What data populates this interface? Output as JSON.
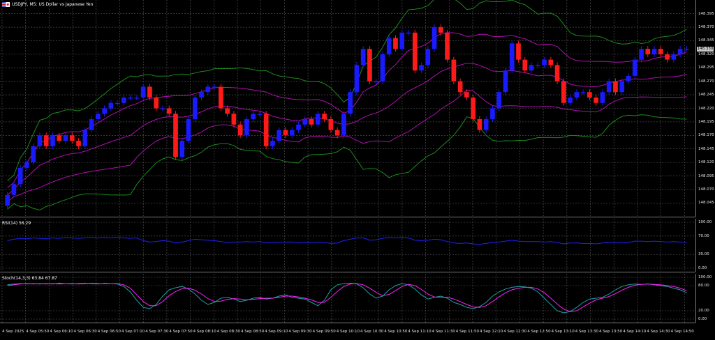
{
  "window": {
    "title": "USDJPY, M5:  US Dollar vs Japanese Yen",
    "flag_icon": "us-japan-flag-icon"
  },
  "indicators": {
    "rsi_label": "RSI(14) 56.29",
    "stoch_label": "Stoch(14,3,3) 63.84 67.87"
  },
  "price_axis": {
    "ticks": [
      "148.395",
      "148.370",
      "148.345",
      "148.320",
      "148.295",
      "148.270",
      "148.245",
      "148.220",
      "148.195",
      "148.170",
      "148.145",
      "148.120",
      "148.095",
      "148.070",
      "148.045"
    ],
    "current_price": "148.330"
  },
  "rsi_axis": {
    "ticks": [
      "100.00",
      "70.00",
      "30.00",
      "0.00"
    ]
  },
  "stoch_axis": {
    "ticks": [
      "100.00",
      "80.00",
      "20.00",
      "0.00"
    ]
  },
  "time_axis": {
    "labels": [
      "4 Sep 2025",
      "4 Sep 05:50",
      "4 Sep 06:10",
      "4 Sep 06:30",
      "4 Sep 06:50",
      "4 Sep 07:10",
      "4 Sep 07:30",
      "4 Sep 07:50",
      "4 Sep 08:10",
      "4 Sep 08:30",
      "4 Sep 08:50",
      "4 Sep 09:10",
      "4 Sep 09:30",
      "4 Sep 09:50",
      "4 Sep 10:10",
      "4 Sep 10:30",
      "4 Sep 10:50",
      "4 Sep 11:10",
      "4 Sep 11:30",
      "4 Sep 11:50",
      "4 Sep 12:10",
      "4 Sep 12:30",
      "4 Sep 12:50",
      "4 Sep 13:10",
      "4 Sep 13:30",
      "4 Sep 13:50",
      "4 Sep 14:10",
      "4 Sep 14:30",
      "4 Sep 14:50"
    ]
  },
  "colors": {
    "background": "#000000",
    "grid": "#5a5a5a",
    "bull_candle": "#1a1aff",
    "bear_candle": "#ff1a1a",
    "bb_outer": "#1d8a1d",
    "bb_inner": "#b010b0",
    "rsi_line": "#2020ff",
    "stoch_main": "#20a0a0",
    "stoch_signal": "#ff20ff"
  },
  "chart_data": [
    {
      "type": "candlestick",
      "title": "USDJPY, M5:  US Dollar vs Japanese Yen",
      "ylim": [
        148.03,
        148.41
      ],
      "close": [
        148.06,
        148.08,
        148.11,
        148.12,
        148.15,
        148.17,
        148.15,
        148.17,
        148.16,
        148.17,
        148.16,
        148.15,
        148.18,
        148.2,
        148.21,
        148.22,
        148.23,
        148.23,
        148.24,
        148.24,
        148.24,
        148.26,
        148.24,
        148.22,
        148.22,
        148.21,
        148.13,
        148.16,
        148.2,
        148.24,
        148.25,
        148.26,
        148.26,
        148.22,
        148.21,
        148.19,
        148.17,
        148.2,
        148.21,
        148.21,
        148.15,
        148.16,
        148.18,
        148.17,
        148.18,
        148.19,
        148.2,
        148.19,
        148.21,
        148.2,
        148.18,
        148.17,
        148.21,
        148.25,
        148.3,
        148.33,
        148.27,
        148.27,
        148.32,
        148.35,
        148.33,
        148.36,
        148.36,
        148.29,
        148.3,
        148.33,
        148.37,
        148.36,
        148.31,
        148.27,
        148.25,
        148.24,
        148.2,
        148.18,
        148.2,
        148.22,
        148.25,
        148.29,
        148.34,
        148.31,
        148.29,
        148.3,
        148.3,
        148.31,
        148.3,
        148.27,
        148.23,
        148.24,
        148.25,
        148.25,
        148.24,
        148.23,
        148.25,
        148.27,
        148.25,
        148.27,
        148.28,
        148.31,
        148.33,
        148.32,
        148.33,
        148.32,
        148.31,
        148.32,
        148.33,
        148.33
      ],
      "open": [
        148.04,
        148.06,
        148.08,
        148.11,
        148.12,
        148.15,
        148.17,
        148.15,
        148.17,
        148.16,
        148.17,
        148.16,
        148.15,
        148.18,
        148.2,
        148.21,
        148.22,
        148.23,
        148.23,
        148.24,
        148.24,
        148.24,
        148.26,
        148.24,
        148.22,
        148.22,
        148.21,
        148.13,
        148.16,
        148.2,
        148.24,
        148.25,
        148.26,
        148.26,
        148.22,
        148.21,
        148.19,
        148.17,
        148.2,
        148.21,
        148.21,
        148.15,
        148.16,
        148.18,
        148.17,
        148.18,
        148.19,
        148.2,
        148.19,
        148.21,
        148.2,
        148.18,
        148.17,
        148.21,
        148.25,
        148.3,
        148.33,
        148.27,
        148.27,
        148.32,
        148.35,
        148.33,
        148.36,
        148.36,
        148.29,
        148.3,
        148.33,
        148.37,
        148.36,
        148.31,
        148.27,
        148.25,
        148.24,
        148.2,
        148.18,
        148.2,
        148.22,
        148.25,
        148.29,
        148.34,
        148.31,
        148.29,
        148.3,
        148.3,
        148.31,
        148.3,
        148.27,
        148.23,
        148.24,
        148.25,
        148.25,
        148.24,
        148.23,
        148.25,
        148.27,
        148.25,
        148.27,
        148.28,
        148.31,
        148.33,
        148.32,
        148.33,
        148.32,
        148.31,
        148.32,
        148.33
      ]
    },
    {
      "type": "line",
      "title": "RSI(14) 56.29",
      "ylim": [
        0,
        100
      ],
      "values": [
        60,
        63,
        65,
        64,
        66,
        65,
        64,
        66,
        65,
        67,
        66,
        65,
        66,
        67,
        66,
        67,
        66,
        67,
        66,
        65,
        66,
        60,
        57,
        58,
        60,
        59,
        55,
        57,
        60,
        63,
        62,
        61,
        60,
        58,
        56,
        57,
        57,
        58,
        57,
        58,
        55,
        56,
        56,
        57,
        57,
        55,
        56,
        55,
        57,
        56,
        54,
        55,
        60,
        63,
        66,
        66,
        61,
        62,
        65,
        67,
        66,
        67,
        66,
        61,
        60,
        61,
        63,
        62,
        58,
        55,
        54,
        55,
        53,
        52,
        54,
        56,
        57,
        59,
        61,
        59,
        58,
        58,
        58,
        57,
        58,
        56,
        53,
        55,
        55,
        54,
        54,
        53,
        55,
        56,
        55,
        56,
        56,
        59,
        59,
        58,
        59,
        58,
        57,
        58,
        57,
        56
      ]
    },
    {
      "type": "line",
      "title": "Stoch(14,3,3) 63.84 67.87",
      "ylim": [
        0,
        100
      ],
      "series": [
        {
          "values": [
            82,
            84,
            85,
            84,
            85,
            84,
            85,
            84,
            86,
            85,
            84,
            85,
            86,
            85,
            84,
            86,
            85,
            84,
            78,
            65,
            45,
            28,
            25,
            35,
            55,
            70,
            75,
            78,
            72,
            60,
            45,
            35,
            40,
            50,
            52,
            48,
            42,
            45,
            50,
            52,
            48,
            50,
            55,
            58,
            52,
            50,
            48,
            40,
            32,
            45,
            70,
            82,
            85,
            86,
            84,
            75,
            60,
            50,
            55,
            70,
            80,
            85,
            82,
            72,
            58,
            48,
            52,
            55,
            50,
            40,
            35,
            28,
            25,
            30,
            40,
            55,
            65,
            72,
            76,
            78,
            77,
            74,
            65,
            50,
            35,
            20,
            15,
            18,
            28,
            40,
            48,
            50,
            52,
            60,
            70,
            78,
            82,
            84,
            83,
            84,
            82,
            80,
            78,
            74,
            70,
            63
          ]
        },
        {
          "values": [
            80,
            82,
            84,
            85,
            84,
            85,
            84,
            85,
            84,
            85,
            85,
            84,
            85,
            86,
            85,
            85,
            85,
            85,
            82,
            74,
            58,
            42,
            32,
            32,
            42,
            56,
            66,
            73,
            74,
            69,
            60,
            49,
            42,
            43,
            47,
            49,
            48,
            46,
            47,
            49,
            50,
            50,
            52,
            55,
            55,
            53,
            50,
            46,
            40,
            40,
            52,
            66,
            78,
            84,
            85,
            82,
            74,
            64,
            56,
            59,
            68,
            78,
            83,
            80,
            71,
            60,
            53,
            52,
            52,
            48,
            42,
            35,
            29,
            28,
            32,
            42,
            53,
            63,
            70,
            74,
            76,
            76,
            72,
            63,
            50,
            36,
            24,
            18,
            20,
            29,
            38,
            46,
            50,
            54,
            61,
            69,
            76,
            81,
            83,
            84,
            83,
            82,
            80,
            78,
            74,
            68
          ]
        }
      ]
    }
  ]
}
